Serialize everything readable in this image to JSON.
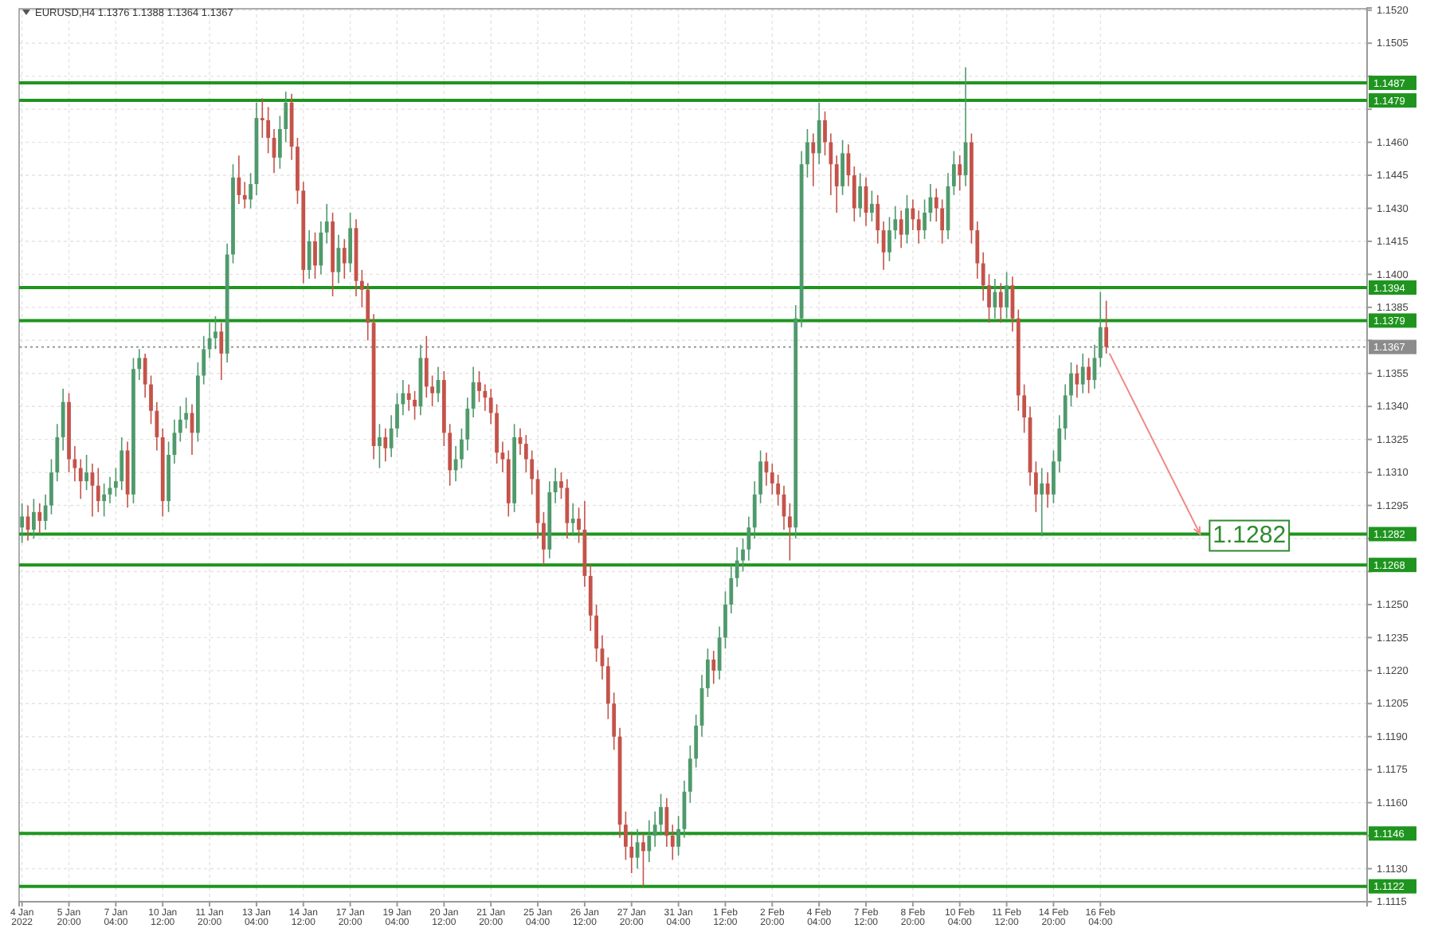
{
  "chart_data": {
    "type": "candlestick",
    "title": "EURUSD,H4 1.1376 1.1388 1.1364 1.1367",
    "categories": [
      "4 Jan 2022",
      null,
      null,
      null,
      null,
      null,
      null,
      null,
      "5 Jan 20:00",
      null,
      null,
      null,
      null,
      null,
      null,
      null,
      "7 Jan 04:00",
      null,
      null,
      null,
      null,
      null,
      null,
      null,
      "10 Jan 12:00",
      null,
      null,
      null,
      null,
      null,
      null,
      null,
      "11 Jan 20:00",
      null,
      null,
      null,
      null,
      null,
      null,
      null,
      "13 Jan 04:00",
      null,
      null,
      null,
      null,
      null,
      null,
      null,
      "14 Jan 12:00",
      null,
      null,
      null,
      null,
      null,
      null,
      null,
      "17 Jan 20:00",
      null,
      null,
      null,
      null,
      null,
      null,
      null,
      "19 Jan 04:00",
      null,
      null,
      null,
      null,
      null,
      null,
      null,
      "20 Jan 12:00",
      null,
      null,
      null,
      null,
      null,
      null,
      null,
      "21 Jan 20:00",
      null,
      null,
      null,
      null,
      null,
      null,
      null,
      "25 Jan 04:00",
      null,
      null,
      null,
      null,
      null,
      null,
      null,
      "26 Jan 12:00",
      null,
      null,
      null,
      null,
      null,
      null,
      null,
      "27 Jan 20:00",
      null,
      null,
      null,
      null,
      null,
      null,
      null,
      "31 Jan 04:00",
      null,
      null,
      null,
      null,
      null,
      null,
      null,
      "1 Feb 12:00",
      null,
      null,
      null,
      null,
      null,
      null,
      null,
      "2 Feb 20:00",
      null,
      null,
      null,
      null,
      null,
      null,
      null,
      "4 Feb 04:00",
      null,
      null,
      null,
      null,
      null,
      null,
      null,
      "7 Feb 12:00",
      null,
      null,
      null,
      null,
      null,
      null,
      null,
      "8 Feb 20:00",
      null,
      null,
      null,
      null,
      null,
      null,
      null,
      "10 Feb 04:00",
      null,
      null,
      null,
      null,
      null,
      null,
      null,
      "11 Feb 12:00",
      null,
      null,
      null,
      null,
      null,
      null,
      null,
      "14 Feb 20:00",
      null,
      null,
      null,
      null,
      null,
      null,
      null,
      "16 Feb 04:00",
      null,
      null,
      null,
      null,
      null,
      null,
      null,
      null,
      null,
      null,
      null,
      null,
      null,
      null,
      null,
      null,
      null,
      null,
      null,
      null,
      null,
      null,
      null,
      null,
      null,
      null,
      null,
      null,
      null,
      null,
      null,
      null,
      null,
      null,
      null,
      null,
      null,
      null,
      null,
      null,
      null,
      null,
      null,
      null,
      null
    ],
    "ohlc": [
      [
        1.1285,
        1.1296,
        1.1278,
        1.129
      ],
      [
        1.129,
        1.1295,
        1.1279,
        1.1284
      ],
      [
        1.1284,
        1.1298,
        1.128,
        1.1292
      ],
      [
        1.1292,
        1.1296,
        1.1282,
        1.1288
      ],
      [
        1.1288,
        1.13,
        1.1284,
        1.1295
      ],
      [
        1.1295,
        1.1316,
        1.1291,
        1.131
      ],
      [
        1.131,
        1.1332,
        1.1306,
        1.1326
      ],
      [
        1.1326,
        1.1348,
        1.132,
        1.1342
      ],
      [
        1.1342,
        1.1346,
        1.131,
        1.1316
      ],
      [
        1.1316,
        1.1322,
        1.1306,
        1.1312
      ],
      [
        1.1312,
        1.1316,
        1.1298,
        1.1306
      ],
      [
        1.1306,
        1.1318,
        1.1302,
        1.131
      ],
      [
        1.131,
        1.1314,
        1.129,
        1.1304
      ],
      [
        1.1304,
        1.1312,
        1.1292,
        1.1297
      ],
      [
        1.1297,
        1.1305,
        1.129,
        1.13
      ],
      [
        1.13,
        1.1308,
        1.1296,
        1.1303
      ],
      [
        1.1303,
        1.1312,
        1.1299,
        1.1306
      ],
      [
        1.1306,
        1.1326,
        1.1302,
        1.132
      ],
      [
        1.132,
        1.1324,
        1.1294,
        1.13
      ],
      [
        1.13,
        1.1362,
        1.1296,
        1.1357
      ],
      [
        1.1357,
        1.1366,
        1.1352,
        1.1362
      ],
      [
        1.1362,
        1.1364,
        1.1344,
        1.135
      ],
      [
        1.135,
        1.1354,
        1.1332,
        1.1338
      ],
      [
        1.1338,
        1.1342,
        1.132,
        1.1326
      ],
      [
        1.1326,
        1.133,
        1.129,
        1.1297
      ],
      [
        1.1297,
        1.1324,
        1.1292,
        1.1318
      ],
      [
        1.1318,
        1.1334,
        1.1314,
        1.1328
      ],
      [
        1.1328,
        1.134,
        1.1324,
        1.1334
      ],
      [
        1.1334,
        1.1344,
        1.133,
        1.1337
      ],
      [
        1.1337,
        1.1341,
        1.1318,
        1.1328
      ],
      [
        1.1328,
        1.136,
        1.1324,
        1.1354
      ],
      [
        1.1354,
        1.1372,
        1.135,
        1.1366
      ],
      [
        1.1366,
        1.1378,
        1.1362,
        1.1371
      ],
      [
        1.1371,
        1.1381,
        1.1366,
        1.1374
      ],
      [
        1.1374,
        1.1378,
        1.1352,
        1.1364
      ],
      [
        1.1364,
        1.1414,
        1.136,
        1.1409
      ],
      [
        1.1409,
        1.145,
        1.1405,
        1.1444
      ],
      [
        1.1444,
        1.1454,
        1.1432,
        1.1436
      ],
      [
        1.1436,
        1.1442,
        1.143,
        1.1434
      ],
      [
        1.1434,
        1.1446,
        1.143,
        1.1441
      ],
      [
        1.1441,
        1.1478,
        1.1436,
        1.1471
      ],
      [
        1.1471,
        1.148,
        1.1462,
        1.147
      ],
      [
        1.147,
        1.1476,
        1.1455,
        1.1462
      ],
      [
        1.1462,
        1.1466,
        1.1446,
        1.1453
      ],
      [
        1.1453,
        1.1472,
        1.1448,
        1.1466
      ],
      [
        1.1466,
        1.1483,
        1.146,
        1.1478
      ],
      [
        1.1478,
        1.1482,
        1.1452,
        1.1458
      ],
      [
        1.1458,
        1.1462,
        1.1432,
        1.1438
      ],
      [
        1.1438,
        1.1442,
        1.1396,
        1.1402
      ],
      [
        1.1402,
        1.142,
        1.1398,
        1.1415
      ],
      [
        1.1415,
        1.1419,
        1.1398,
        1.1404
      ],
      [
        1.1404,
        1.1424,
        1.14,
        1.1419
      ],
      [
        1.1419,
        1.1432,
        1.1414,
        1.1424
      ],
      [
        1.1424,
        1.1428,
        1.139,
        1.1401
      ],
      [
        1.1401,
        1.1418,
        1.1396,
        1.1412
      ],
      [
        1.1412,
        1.1416,
        1.1398,
        1.1405
      ],
      [
        1.1405,
        1.1428,
        1.1401,
        1.1421
      ],
      [
        1.1421,
        1.1425,
        1.139,
        1.1397
      ],
      [
        1.1397,
        1.1402,
        1.1385,
        1.1393
      ],
      [
        1.1393,
        1.1396,
        1.137,
        1.1378
      ],
      [
        1.1378,
        1.1382,
        1.1316,
        1.1322
      ],
      [
        1.1322,
        1.1332,
        1.1312,
        1.1326
      ],
      [
        1.1326,
        1.133,
        1.1315,
        1.1321
      ],
      [
        1.1321,
        1.1336,
        1.1317,
        1.133
      ],
      [
        1.133,
        1.1346,
        1.1326,
        1.1341
      ],
      [
        1.1341,
        1.1352,
        1.1336,
        1.1346
      ],
      [
        1.1346,
        1.135,
        1.1338,
        1.1343
      ],
      [
        1.1343,
        1.1347,
        1.1334,
        1.134
      ],
      [
        1.134,
        1.1368,
        1.1336,
        1.1362
      ],
      [
        1.1362,
        1.1372,
        1.1344,
        1.1349
      ],
      [
        1.1349,
        1.1354,
        1.134,
        1.1346
      ],
      [
        1.1346,
        1.1358,
        1.1342,
        1.1352
      ],
      [
        1.1352,
        1.1356,
        1.1322,
        1.1328
      ],
      [
        1.1328,
        1.1332,
        1.1304,
        1.1311
      ],
      [
        1.1311,
        1.1322,
        1.1306,
        1.1316
      ],
      [
        1.1316,
        1.133,
        1.1312,
        1.1325
      ],
      [
        1.1325,
        1.1344,
        1.132,
        1.1339
      ],
      [
        1.1339,
        1.1358,
        1.1335,
        1.1351
      ],
      [
        1.1351,
        1.1356,
        1.1342,
        1.1347
      ],
      [
        1.1347,
        1.135,
        1.1338,
        1.1344
      ],
      [
        1.1344,
        1.1348,
        1.1332,
        1.1337
      ],
      [
        1.1337,
        1.1341,
        1.1314,
        1.1319
      ],
      [
        1.1319,
        1.1324,
        1.131,
        1.1316
      ],
      [
        1.1316,
        1.132,
        1.129,
        1.1296
      ],
      [
        1.1296,
        1.1332,
        1.1292,
        1.1326
      ],
      [
        1.1326,
        1.133,
        1.1318,
        1.1323
      ],
      [
        1.1323,
        1.1327,
        1.131,
        1.1316
      ],
      [
        1.1316,
        1.132,
        1.13,
        1.1307
      ],
      [
        1.1307,
        1.1311,
        1.128,
        1.1287
      ],
      [
        1.1287,
        1.1292,
        1.1268,
        1.1275
      ],
      [
        1.1275,
        1.1306,
        1.1271,
        1.1301
      ],
      [
        1.1301,
        1.1312,
        1.1296,
        1.1306
      ],
      [
        1.1306,
        1.131,
        1.1298,
        1.1303
      ],
      [
        1.1303,
        1.1307,
        1.128,
        1.1287
      ],
      [
        1.1287,
        1.1296,
        1.1282,
        1.1289
      ],
      [
        1.1289,
        1.1294,
        1.1278,
        1.1284
      ],
      [
        1.1284,
        1.1297,
        1.1258,
        1.1263
      ],
      [
        1.1263,
        1.1268,
        1.1238,
        1.1245
      ],
      [
        1.1245,
        1.125,
        1.1224,
        1.123
      ],
      [
        1.123,
        1.1236,
        1.1216,
        1.1222
      ],
      [
        1.1222,
        1.1226,
        1.1198,
        1.1205
      ],
      [
        1.1205,
        1.121,
        1.1184,
        1.119
      ],
      [
        1.119,
        1.1194,
        1.1144,
        1.115
      ],
      [
        1.115,
        1.1156,
        1.1134,
        1.114
      ],
      [
        1.114,
        1.1146,
        1.1128,
        1.1135
      ],
      [
        1.1135,
        1.1148,
        1.113,
        1.1142
      ],
      [
        1.1142,
        1.1146,
        1.1122,
        1.1138
      ],
      [
        1.1138,
        1.1152,
        1.1133,
        1.1145
      ],
      [
        1.1145,
        1.1156,
        1.114,
        1.115
      ],
      [
        1.115,
        1.1164,
        1.1145,
        1.1158
      ],
      [
        1.1158,
        1.1162,
        1.114,
        1.1145
      ],
      [
        1.1145,
        1.115,
        1.1134,
        1.114
      ],
      [
        1.114,
        1.1154,
        1.1136,
        1.1148
      ],
      [
        1.1148,
        1.117,
        1.1144,
        1.1165
      ],
      [
        1.1165,
        1.1186,
        1.116,
        1.118
      ],
      [
        1.118,
        1.12,
        1.1176,
        1.1195
      ],
      [
        1.1195,
        1.1218,
        1.119,
        1.1212
      ],
      [
        1.1212,
        1.123,
        1.1208,
        1.1225
      ],
      [
        1.1225,
        1.1229,
        1.1214,
        1.122
      ],
      [
        1.122,
        1.124,
        1.1216,
        1.1235
      ],
      [
        1.1235,
        1.1256,
        1.123,
        1.125
      ],
      [
        1.125,
        1.1268,
        1.1246,
        1.1262
      ],
      [
        1.1262,
        1.1276,
        1.1258,
        1.127
      ],
      [
        1.127,
        1.128,
        1.1265,
        1.1275
      ],
      [
        1.1275,
        1.129,
        1.127,
        1.1285
      ],
      [
        1.1285,
        1.1306,
        1.128,
        1.13
      ],
      [
        1.13,
        1.132,
        1.1296,
        1.1315
      ],
      [
        1.1315,
        1.1319,
        1.1304,
        1.131
      ],
      [
        1.131,
        1.1314,
        1.13,
        1.1305
      ],
      [
        1.1305,
        1.1309,
        1.1295,
        1.13
      ],
      [
        1.13,
        1.1304,
        1.1284,
        1.129
      ],
      [
        1.129,
        1.1296,
        1.127,
        1.1285
      ],
      [
        1.1285,
        1.1386,
        1.128,
        1.138
      ],
      [
        1.138,
        1.1456,
        1.1376,
        1.145
      ],
      [
        1.145,
        1.1466,
        1.1444,
        1.146
      ],
      [
        1.146,
        1.1464,
        1.144,
        1.1455
      ],
      [
        1.1455,
        1.1478,
        1.145,
        1.147
      ],
      [
        1.147,
        1.1474,
        1.1454,
        1.146
      ],
      [
        1.146,
        1.1464,
        1.1436,
        1.145
      ],
      [
        1.145,
        1.1454,
        1.1428,
        1.144
      ],
      [
        1.144,
        1.1461,
        1.1436,
        1.1455
      ],
      [
        1.1455,
        1.1459,
        1.144,
        1.1445
      ],
      [
        1.1445,
        1.1449,
        1.1424,
        1.143
      ],
      [
        1.143,
        1.1446,
        1.1426,
        1.144
      ],
      [
        1.144,
        1.1444,
        1.1422,
        1.1428
      ],
      [
        1.1428,
        1.1438,
        1.1424,
        1.1432
      ],
      [
        1.1432,
        1.1436,
        1.1414,
        1.142
      ],
      [
        1.142,
        1.1424,
        1.1402,
        1.141
      ],
      [
        1.141,
        1.1426,
        1.1406,
        1.142
      ],
      [
        1.142,
        1.1431,
        1.1416,
        1.1425
      ],
      [
        1.1425,
        1.1429,
        1.1412,
        1.1418
      ],
      [
        1.1418,
        1.1436,
        1.1414,
        1.143
      ],
      [
        1.143,
        1.1434,
        1.142,
        1.1425
      ],
      [
        1.1425,
        1.1429,
        1.1414,
        1.142
      ],
      [
        1.142,
        1.1434,
        1.1416,
        1.1428
      ],
      [
        1.1428,
        1.1441,
        1.1424,
        1.1435
      ],
      [
        1.1435,
        1.1439,
        1.1424,
        1.143
      ],
      [
        1.143,
        1.1434,
        1.1414,
        1.142
      ],
      [
        1.142,
        1.1446,
        1.1416,
        1.144
      ],
      [
        1.144,
        1.1456,
        1.1436,
        1.145
      ],
      [
        1.145,
        1.1454,
        1.1438,
        1.1445
      ],
      [
        1.1445,
        1.1494,
        1.144,
        1.146
      ],
      [
        1.146,
        1.1464,
        1.1414,
        1.142
      ],
      [
        1.142,
        1.1424,
        1.1398,
        1.1405
      ],
      [
        1.1405,
        1.141,
        1.1388,
        1.1395
      ],
      [
        1.1395,
        1.14,
        1.1378,
        1.1385
      ],
      [
        1.1385,
        1.1398,
        1.138,
        1.1392
      ],
      [
        1.1392,
        1.1396,
        1.1378,
        1.1385
      ],
      [
        1.1385,
        1.1401,
        1.138,
        1.1395
      ],
      [
        1.1395,
        1.1399,
        1.1374,
        1.138
      ],
      [
        1.138,
        1.1384,
        1.1338,
        1.1345
      ],
      [
        1.1345,
        1.135,
        1.1328,
        1.1335
      ],
      [
        1.1335,
        1.134,
        1.1304,
        1.131
      ],
      [
        1.131,
        1.1315,
        1.1292,
        1.13
      ],
      [
        1.13,
        1.1312,
        1.1281,
        1.1305
      ],
      [
        1.1305,
        1.131,
        1.1294,
        1.13
      ],
      [
        1.13,
        1.132,
        1.1296,
        1.1315
      ],
      [
        1.1315,
        1.1336,
        1.131,
        1.133
      ],
      [
        1.133,
        1.135,
        1.1325,
        1.1345
      ],
      [
        1.1345,
        1.136,
        1.134,
        1.1355
      ],
      [
        1.1355,
        1.1359,
        1.1344,
        1.135
      ],
      [
        1.135,
        1.1364,
        1.1346,
        1.1358
      ],
      [
        1.1358,
        1.1362,
        1.1346,
        1.1352
      ],
      [
        1.1352,
        1.1368,
        1.1348,
        1.1362
      ],
      [
        1.1362,
        1.1392,
        1.1358,
        1.1376
      ],
      [
        1.1376,
        1.1388,
        1.1364,
        1.1367
      ],
      null,
      null,
      null,
      null,
      null,
      null,
      null,
      null,
      null,
      null,
      null,
      null,
      null,
      null,
      null,
      null,
      null,
      null,
      null,
      null,
      null,
      null,
      null,
      null,
      null,
      null,
      null,
      null,
      null,
      null,
      null,
      null,
      null,
      null,
      null,
      null,
      null,
      null,
      null,
      null,
      null,
      null,
      null,
      null
    ],
    "ylim": [
      1.1115,
      1.1521
    ],
    "yticks": [
      {
        "value": 1.152,
        "label": "1.1520"
      },
      1.1505,
      {
        "value": 1.149,
        "label": null
      },
      {
        "value": 1.1475,
        "label": null
      },
      {
        "value": 1.146,
        "label": "1.1460"
      },
      1.1445,
      {
        "value": 1.143,
        "label": "1.1430"
      },
      1.1415,
      {
        "value": 1.14,
        "label": "1.1400"
      },
      1.1385,
      {
        "value": 1.137,
        "label": null
      },
      1.1355,
      {
        "value": 1.134,
        "label": "1.1340"
      },
      1.1325,
      {
        "value": 1.131,
        "label": "1.1310"
      },
      1.1295,
      {
        "value": 1.128,
        "label": null
      },
      {
        "value": 1.1265,
        "label": null
      },
      {
        "value": 1.125,
        "label": "1.1250"
      },
      1.1235,
      {
        "value": 1.122,
        "label": "1.1220"
      },
      1.1205,
      {
        "value": 1.119,
        "label": "1.1190"
      },
      1.1175,
      {
        "value": 1.116,
        "label": "1.1160"
      },
      {
        "value": 1.1145,
        "label": null
      },
      {
        "value": 1.113,
        "label": "1.1130"
      },
      1.1115
    ],
    "grid": true,
    "ref_lines": [
      {
        "axis": "y",
        "value": 1.1487,
        "label": "1.1487",
        "color": "#1f951f",
        "line_style": "solid"
      },
      {
        "axis": "y",
        "value": 1.1479,
        "label": "1.1479",
        "color": "#1f951f",
        "line_style": "solid"
      },
      {
        "axis": "y",
        "value": 1.1394,
        "label": "1.1394",
        "color": "#1f951f",
        "line_style": "solid"
      },
      {
        "axis": "y",
        "value": 1.1379,
        "label": "1.1379",
        "color": "#1f951f",
        "line_style": "solid"
      },
      {
        "axis": "y",
        "value": 1.1367,
        "label": "1.1367",
        "color": "#8c8c8c",
        "line_style": "dotted"
      },
      {
        "axis": "y",
        "value": 1.1282,
        "label": "1.1282",
        "color": "#1f951f",
        "line_style": "solid"
      },
      {
        "axis": "y",
        "value": 1.1268,
        "label": "1.1268",
        "color": "#1f951f",
        "line_style": "solid"
      },
      {
        "axis": "y",
        "value": 1.1146,
        "label": "1.1146",
        "color": "#1f951f",
        "line_style": "solid"
      },
      {
        "axis": "y",
        "value": 1.1122,
        "label": "1.1122",
        "color": "#1f951f",
        "line_style": "solid"
      }
    ],
    "annotations": [
      {
        "text": "1.1282",
        "y": 1.1282
      }
    ]
  }
}
